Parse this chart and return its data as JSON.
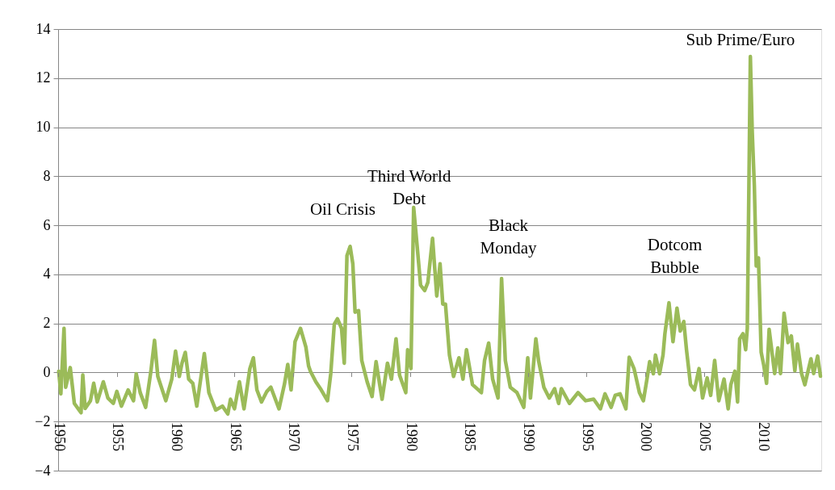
{
  "chart_data": {
    "type": "line",
    "x": [
      1950.05,
      1950.23,
      1950.5,
      1950.64,
      1951.03,
      1951.38,
      1951.95,
      1952.1,
      1952.3,
      1952.75,
      1953.03,
      1953.33,
      1953.85,
      1954.24,
      1954.7,
      1955.0,
      1955.39,
      1955.96,
      1956.42,
      1956.65,
      1956.99,
      1957.45,
      1957.9,
      1958.21,
      1958.49,
      1959.17,
      1959.68,
      1960.0,
      1960.32,
      1960.55,
      1960.83,
      1961.12,
      1961.47,
      1961.81,
      1962.45,
      1962.84,
      1963.42,
      1963.99,
      1964.45,
      1964.68,
      1965.02,
      1965.44,
      1965.83,
      1966.33,
      1966.63,
      1966.93,
      1967.32,
      1967.78,
      1968.12,
      1968.81,
      1969.27,
      1969.56,
      1969.84,
      1970.18,
      1970.64,
      1971.1,
      1971.33,
      1971.49,
      1971.95,
      1972.41,
      1972.94,
      1973.22,
      1973.52,
      1973.79,
      1974.14,
      1974.37,
      1974.6,
      1974.87,
      1975.1,
      1975.29,
      1975.59,
      1975.86,
      1976.32,
      1976.74,
      1977.08,
      1977.59,
      1978.05,
      1978.39,
      1978.78,
      1979.08,
      1979.61,
      1979.77,
      1980.05,
      1980.28,
      1980.57,
      1980.87,
      1981.22,
      1981.49,
      1981.89,
      1982.25,
      1982.53,
      1982.76,
      1982.99,
      1983.33,
      1983.68,
      1984.14,
      1984.48,
      1984.78,
      1985.29,
      1986.05,
      1986.32,
      1986.67,
      1987.01,
      1987.47,
      1987.77,
      1988.09,
      1988.51,
      1989.08,
      1989.66,
      1990.0,
      1990.23,
      1990.69,
      1990.92,
      1991.37,
      1991.83,
      1992.29,
      1992.63,
      1992.86,
      1993.55,
      1994.28,
      1994.93,
      1995.61,
      1996.19,
      1996.58,
      1997.1,
      1997.45,
      1997.86,
      1998.36,
      1998.64,
      1999.05,
      1999.51,
      1999.85,
      2000.19,
      2000.38,
      2000.7,
      2000.88,
      2001.23,
      2001.52,
      2001.68,
      2002.03,
      2002.37,
      2002.71,
      2002.99,
      2003.29,
      2003.52,
      2003.86,
      2004.2,
      2004.59,
      2004.89,
      2005.28,
      2005.58,
      2005.92,
      2006.27,
      2006.72,
      2007.07,
      2007.3,
      2007.64,
      2007.87,
      2008.05,
      2008.33,
      2008.56,
      2008.7,
      2008.96,
      2009.12,
      2009.3,
      2009.46,
      2009.65,
      2009.88,
      2010.1,
      2010.34,
      2010.56,
      2011.03,
      2011.3,
      2011.53,
      2011.83,
      2012.17,
      2012.45,
      2012.75,
      2012.97,
      2013.32,
      2013.6,
      2014.12,
      2014.35,
      2014.69,
      2014.93
    ],
    "series": [
      {
        "color": "#9bbb59",
        "values": [
          0.05,
          -0.87,
          1.8,
          -0.6,
          0.2,
          -1.26,
          -1.64,
          -0.1,
          -1.47,
          -1.15,
          -0.44,
          -1.2,
          -0.38,
          -1.04,
          -1.26,
          -0.77,
          -1.37,
          -0.71,
          -1.15,
          -0.05,
          -0.82,
          -1.42,
          0.05,
          1.31,
          -0.16,
          -1.15,
          -0.27,
          0.87,
          -0.16,
          0.38,
          0.82,
          -0.27,
          -0.44,
          -1.37,
          0.77,
          -0.82,
          -1.53,
          -1.37,
          -1.69,
          -1.09,
          -1.48,
          -0.38,
          -1.48,
          0.16,
          0.6,
          -0.71,
          -1.2,
          -0.77,
          -0.6,
          -1.48,
          -0.49,
          0.33,
          -0.71,
          1.26,
          1.8,
          1.04,
          0.27,
          0.05,
          -0.38,
          -0.71,
          -1.15,
          -0.05,
          1.97,
          2.19,
          1.8,
          0.38,
          4.76,
          5.14,
          4.43,
          2.46,
          2.52,
          0.49,
          -0.38,
          -0.98,
          0.44,
          -1.09,
          0.38,
          -0.27,
          1.37,
          -0.11,
          -0.82,
          0.93,
          0.16,
          6.73,
          5.2,
          3.56,
          3.34,
          3.67,
          5.47,
          3.12,
          4.43,
          2.79,
          2.79,
          0.71,
          -0.16,
          0.6,
          -0.27,
          0.93,
          -0.49,
          -0.82,
          0.49,
          1.2,
          -0.27,
          -1.04,
          3.83,
          0.49,
          -0.6,
          -0.82,
          -1.42,
          0.6,
          -1.04,
          1.37,
          0.49,
          -0.6,
          -1.04,
          -0.66,
          -1.26,
          -0.66,
          -1.26,
          -0.82,
          -1.15,
          -1.09,
          -1.48,
          -0.87,
          -1.42,
          -0.93,
          -0.87,
          -1.48,
          0.62,
          0.16,
          -0.82,
          -1.15,
          -0.16,
          0.44,
          -0.05,
          0.71,
          -0.05,
          0.71,
          1.58,
          2.84,
          1.26,
          2.62,
          1.69,
          2.08,
          0.93,
          -0.49,
          -0.71,
          0.16,
          -1.04,
          -0.22,
          -0.93,
          0.49,
          -1.15,
          -0.27,
          -1.48,
          -0.49,
          0.05,
          -1.2,
          1.37,
          1.58,
          0.93,
          1.8,
          12.88,
          9.81,
          7.6,
          4.34,
          4.67,
          0.83,
          0.3,
          -0.44,
          1.76,
          -0.04,
          1.0,
          -0.04,
          2.42,
          1.22,
          1.49,
          0.07,
          1.16,
          -0.04,
          -0.5,
          0.56,
          -0.04,
          0.67,
          -0.15
        ]
      }
    ],
    "xlim": [
      1950,
      2015
    ],
    "xticks": [
      1950,
      1955,
      1960,
      1965,
      1970,
      1975,
      1980,
      1985,
      1990,
      1995,
      2000,
      2005,
      2010
    ],
    "ylim": [
      -4,
      14
    ],
    "yticks": [
      -4,
      -2,
      0,
      2,
      4,
      6,
      8,
      10,
      12,
      14
    ],
    "grid": "y",
    "marker": "none",
    "line_style": "solid",
    "annotations": [
      "Oil Crisis",
      "Third World\nDebt",
      "Black\nMonday",
      "Dotcom\nBubble",
      "Sub Prime/Euro"
    ]
  }
}
